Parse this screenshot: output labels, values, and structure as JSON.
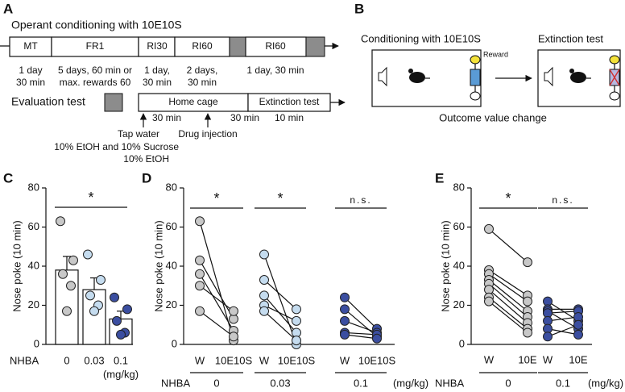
{
  "panel_a": {
    "label": "A",
    "title": "Operant conditioning with 10E10S",
    "phases": [
      "MT",
      "FR1",
      "RI30",
      "RI60",
      "RI60"
    ],
    "details": [
      [
        "1 day",
        "30 min"
      ],
      [
        "5 days, 60 min or",
        "max. rewards 60"
      ],
      [
        "1 day,",
        "30 min"
      ],
      [
        "2 days,",
        "30 min"
      ],
      [
        "1 day, 30 min"
      ]
    ],
    "evaluation_title": "Evaluation test",
    "stages": [
      "Home cage",
      "Extinction test"
    ],
    "durations": [
      "30 min",
      "30 min",
      "10 min"
    ],
    "event": "Drug injection",
    "solutions": [
      "Tap water",
      "10% EtOH and 10% Sucrose",
      "10% EtOH"
    ]
  },
  "panel_b": {
    "label": "B",
    "conditioning": "Conditioning with 10E10S",
    "reward": "Reward",
    "extinction": "Extinction test",
    "caption": "Outcome value change"
  },
  "chart_data": [
    {
      "type": "bar",
      "panel": "C",
      "y_label": "Nose poke (10 min)",
      "x_label": "NHBA",
      "x_unit": "(mg/kg)",
      "categories": [
        "0",
        "0.03",
        "0.1"
      ],
      "values": [
        38,
        28,
        13
      ],
      "errors": [
        7,
        6,
        4
      ],
      "colors": [
        "#c8c8c8",
        "#c5dcef",
        "#3b4ea0"
      ],
      "points": [
        [
          63,
          43,
          36,
          30,
          17
        ],
        [
          46,
          33,
          25,
          20,
          17
        ],
        [
          24,
          18,
          12,
          6,
          5
        ]
      ],
      "annotation": "*",
      "ylim": [
        0,
        80
      ],
      "yticks": [
        0,
        20,
        40,
        60,
        80
      ]
    },
    {
      "type": "paired",
      "panel": "D",
      "y_label": "Nose poke (10 min)",
      "x_label": "NHBA",
      "x_unit": "(mg/kg)",
      "groups": [
        {
          "label": "0",
          "conditions": [
            "W",
            "10E10S"
          ],
          "color": "#c8c8c8",
          "annotation": "*",
          "before": [
            63,
            43,
            36,
            30,
            17
          ],
          "after": [
            2,
            13,
            7,
            17,
            4
          ]
        },
        {
          "label": "0.03",
          "conditions": [
            "W",
            "10E10S"
          ],
          "color": "#c5dcef",
          "annotation": "*",
          "before": [
            46,
            33,
            25,
            20,
            17
          ],
          "after": [
            0,
            18,
            6,
            12,
            2
          ]
        },
        {
          "label": "0.1",
          "conditions": [
            "W",
            "10E10S"
          ],
          "color": "#3b4ea0",
          "annotation": "n.s.",
          "before": [
            24,
            18,
            12,
            6,
            5
          ],
          "after": [
            8,
            4,
            6,
            5,
            3
          ]
        }
      ],
      "ylim": [
        0,
        80
      ],
      "yticks": [
        0,
        20,
        40,
        60,
        80
      ]
    },
    {
      "type": "paired",
      "panel": "E",
      "y_label": "Nose poke (10 min)",
      "x_label": "NHBA",
      "x_unit": "(mg/kg)",
      "groups": [
        {
          "label": "0",
          "conditions": [
            "W",
            "10E"
          ],
          "color": "#c8c8c8",
          "annotation": "*",
          "before": [
            59,
            38,
            36,
            33,
            31,
            28,
            24,
            22
          ],
          "after": [
            42,
            25,
            22,
            17,
            14,
            11,
            8,
            6
          ]
        },
        {
          "label": "0.1",
          "conditions": [
            "W",
            "10E"
          ],
          "color": "#3b4ea0",
          "annotation": "n.s.",
          "before": [
            22,
            18,
            17,
            16,
            12,
            8,
            4
          ],
          "after": [
            12,
            18,
            8,
            17,
            14,
            5,
            10
          ]
        }
      ],
      "ylim": [
        0,
        80
      ],
      "yticks": [
        0,
        20,
        40,
        60,
        80
      ]
    }
  ]
}
